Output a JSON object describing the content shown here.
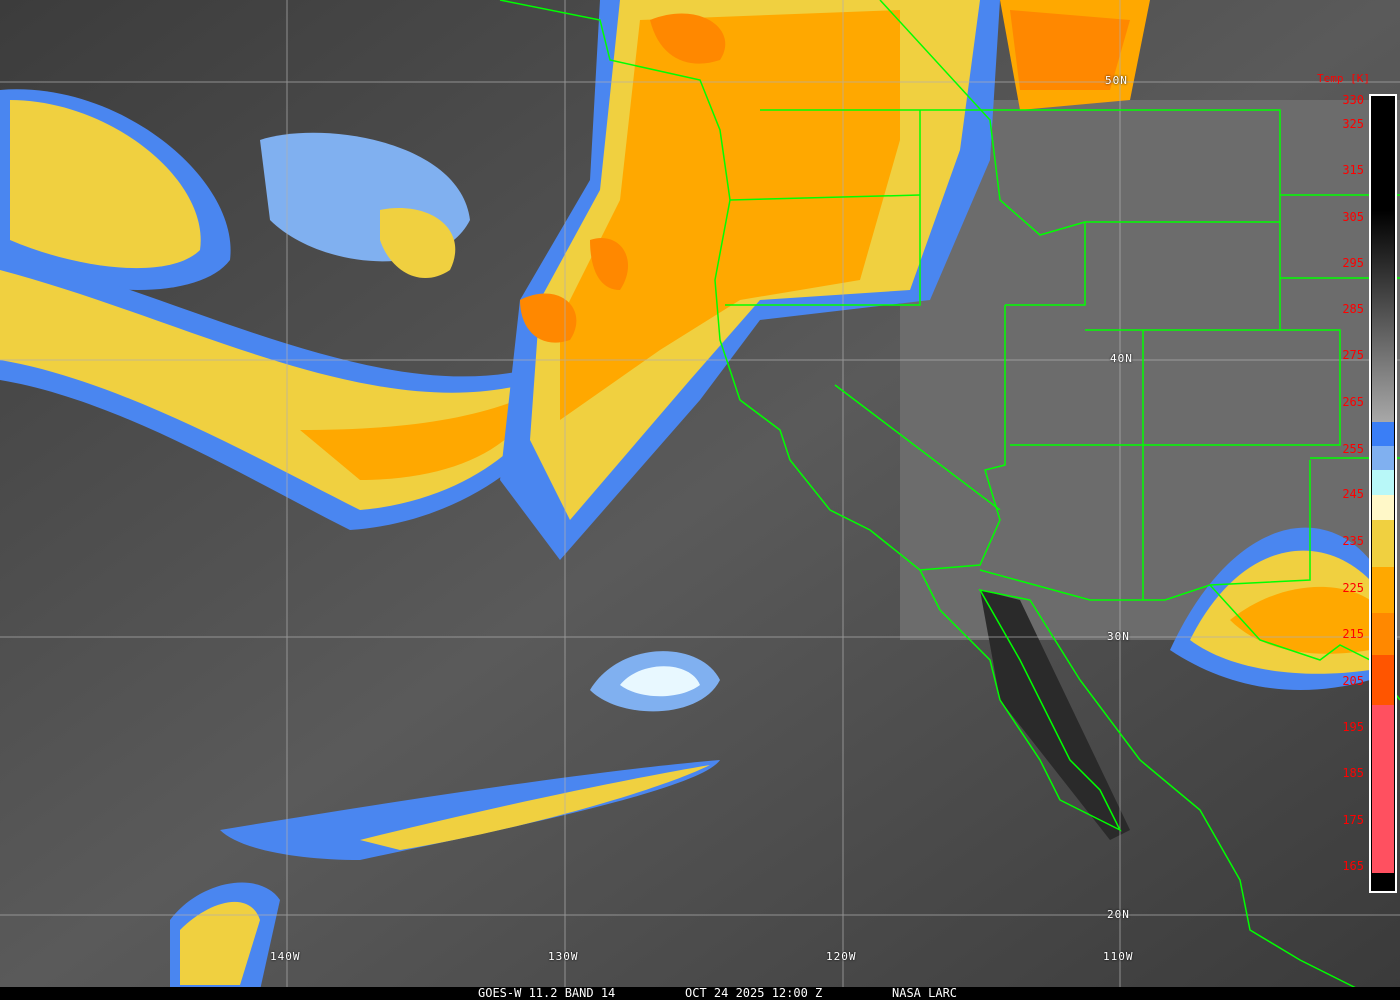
{
  "caption": {
    "satellite": "GOES-W 11.2 BAND 14",
    "datetime": "OCT 24 2025 12:00 Z",
    "source": "NASA LARC"
  },
  "grid": {
    "latitudes": [
      "50N",
      "40N",
      "30N",
      "20N"
    ],
    "longitudes": [
      "140W",
      "130W",
      "120W",
      "110W"
    ]
  },
  "colorbar": {
    "title": "Temp [K]",
    "ticks": [
      "330",
      "325",
      "315",
      "305",
      "295",
      "285",
      "275",
      "265",
      "255",
      "245",
      "235",
      "225",
      "215",
      "205",
      "195",
      "185",
      "175",
      "165"
    ],
    "colors": {
      "blue": "#3a7ef6",
      "light_blue": "#80b0f0",
      "pale_cyan": "#b8f8f8",
      "cream": "#fff8c8",
      "yellow": "#f0d040",
      "amber": "#ffa800",
      "orange": "#ff8800",
      "red_orange": "#ff5500",
      "pink": "#ff5060"
    }
  },
  "colors": {
    "borders": "#00ff00",
    "grid": "#b0b0b0",
    "labels": "#ff0000"
  }
}
